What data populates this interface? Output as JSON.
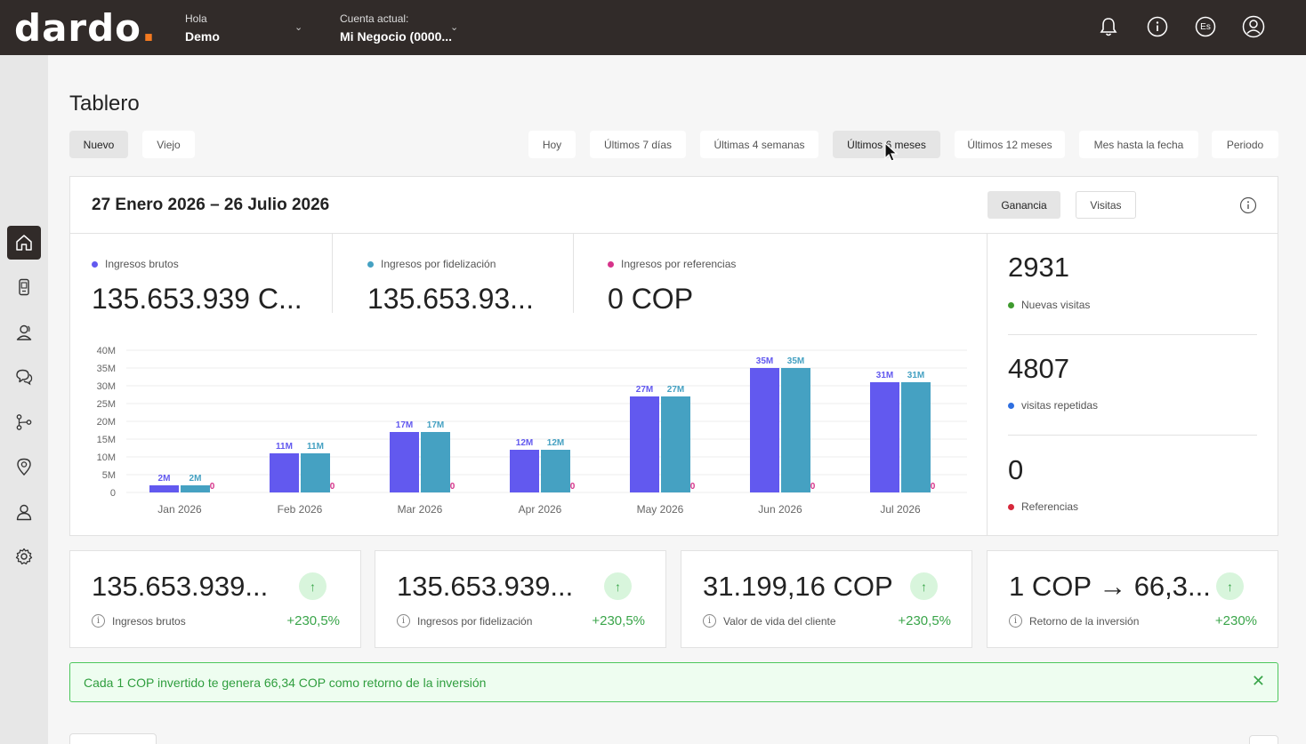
{
  "header": {
    "logo_main": "dardo",
    "logo_dot": ".",
    "greeting_label": "Hola",
    "user_name": "Demo",
    "account_label": "Cuenta actual:",
    "account_name": "Mi Negocio (0000...",
    "language": "Es"
  },
  "page": {
    "title": "Tablero",
    "view_tabs": [
      "Nuevo",
      "Viejo"
    ],
    "periods": [
      "Hoy",
      "Últimos 7 días",
      "Últimas 4 semanas",
      "Últimos 6 meses",
      "Últimos 12 meses",
      "Mes hasta la fecha",
      "Periodo"
    ],
    "selected_period": "Últimos 6 meses"
  },
  "summary": {
    "date_range": "27 Enero 2026 – 26 Julio 2026",
    "toggle": [
      "Ganancia",
      "Visitas"
    ],
    "metrics": [
      {
        "label": "Ingresos brutos",
        "value": "135.653.939 C...",
        "color": "#6259ef"
      },
      {
        "label": "Ingresos por fidelización",
        "value": "135.653.93...",
        "color": "#45a1c2"
      },
      {
        "label": "Ingresos por referencias",
        "value": "0 COP",
        "color": "#d6338a"
      }
    ],
    "visits": [
      {
        "value": "2931",
        "label": "Nuevas visitas",
        "color": "#3e9a2e"
      },
      {
        "value": "4807",
        "label": "visitas repetidas",
        "color": "#2f6fe0"
      },
      {
        "value": "0",
        "label": "Referencias",
        "color": "#d6283b"
      }
    ]
  },
  "chart_data": {
    "type": "bar",
    "categories": [
      "Jan 2026",
      "Feb 2026",
      "Mar 2026",
      "Apr 2026",
      "May 2026",
      "Jun 2026",
      "Jul 2026"
    ],
    "series": [
      {
        "name": "Ingresos brutos",
        "values": [
          2,
          11,
          17,
          12,
          27,
          35,
          31
        ],
        "labels": [
          "2M",
          "11M",
          "17M",
          "12M",
          "27M",
          "35M",
          "31M"
        ],
        "color": "#6259ef"
      },
      {
        "name": "Ingresos por fidelización",
        "values": [
          2,
          11,
          17,
          12,
          27,
          35,
          31
        ],
        "labels": [
          "2M",
          "11M",
          "17M",
          "12M",
          "27M",
          "35M",
          "31M"
        ],
        "color": "#45a1c2"
      },
      {
        "name": "Ingresos por referencias",
        "values": [
          0,
          0,
          0,
          0,
          0,
          0,
          0
        ],
        "labels": [
          "0",
          "0",
          "0",
          "0",
          "0",
          "0",
          "0"
        ],
        "color": "#d6338a"
      }
    ],
    "y_ticks": [
      "0",
      "5M",
      "10M",
      "15M",
      "20M",
      "25M",
      "30M",
      "35M",
      "40M"
    ],
    "ylim": [
      0,
      40
    ],
    "grid": true
  },
  "kpis": [
    {
      "value": "135.653.939...",
      "label": "Ingresos brutos",
      "change": "+230,5%"
    },
    {
      "value": "135.653.939...",
      "label": "Ingresos por fidelización",
      "change": "+230,5%"
    },
    {
      "value": "31.199,16 COP",
      "label": "Valor de vida del cliente",
      "change": "+230,5%"
    },
    {
      "value": "1 COP → 66,3...",
      "label": "Retorno de la inversión",
      "change": "+230%"
    }
  ],
  "banner": {
    "text": "Cada 1 COP invertido te genera 66,34 COP como retorno de la inversión"
  }
}
